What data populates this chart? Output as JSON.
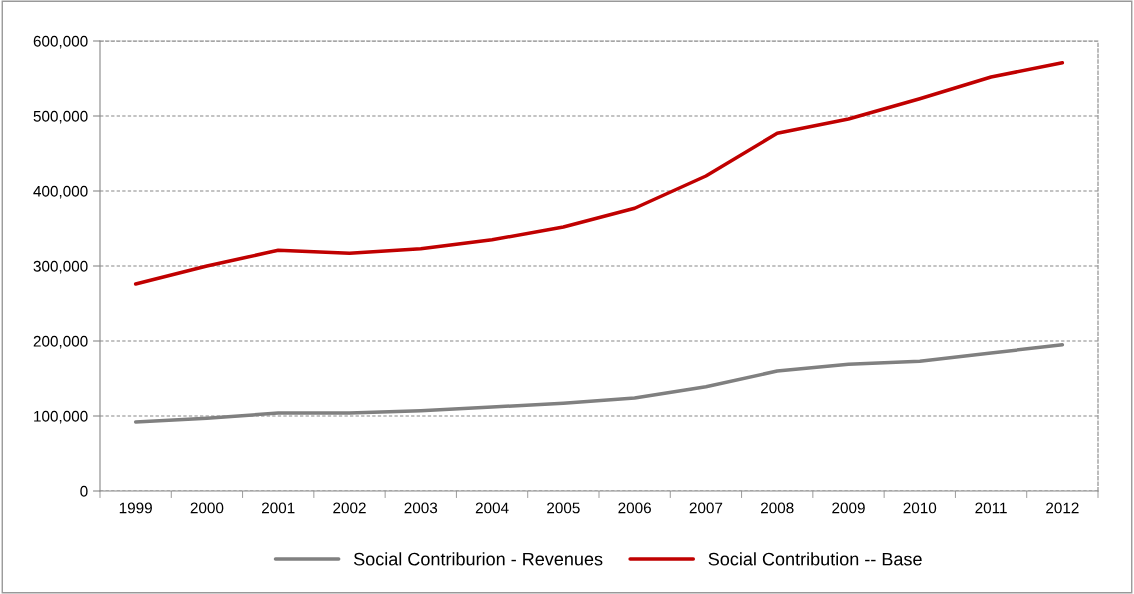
{
  "chart_data": {
    "type": "line",
    "categories": [
      "1999",
      "2000",
      "2001",
      "2002",
      "2003",
      "2004",
      "2005",
      "2006",
      "2007",
      "2008",
      "2009",
      "2010",
      "2011",
      "2012"
    ],
    "series": [
      {
        "name": "Social Contriburion - Revenues",
        "color": "#808080",
        "values": [
          92000,
          97000,
          104000,
          104000,
          107000,
          112000,
          117000,
          124000,
          139000,
          160000,
          169000,
          173000,
          184000,
          195000
        ]
      },
      {
        "name": "Social Contribution -- Base",
        "color": "#c00000",
        "values": [
          276000,
          300000,
          321000,
          317000,
          323000,
          335000,
          352000,
          377000,
          420000,
          477000,
          496000,
          523000,
          552000,
          571000
        ]
      }
    ],
    "ylim": [
      0,
      600000
    ],
    "yticks": [
      {
        "value": 0,
        "label": "0"
      },
      {
        "value": 100000,
        "label": "100,000"
      },
      {
        "value": 200000,
        "label": "200,000"
      },
      {
        "value": 300000,
        "label": "300,000"
      },
      {
        "value": 400000,
        "label": "400,000"
      },
      {
        "value": 500000,
        "label": "500,000"
      },
      {
        "value": 600000,
        "label": "600,000"
      }
    ],
    "grid": "y",
    "legend": "bottom",
    "marker": "none",
    "line_style": "solid"
  }
}
